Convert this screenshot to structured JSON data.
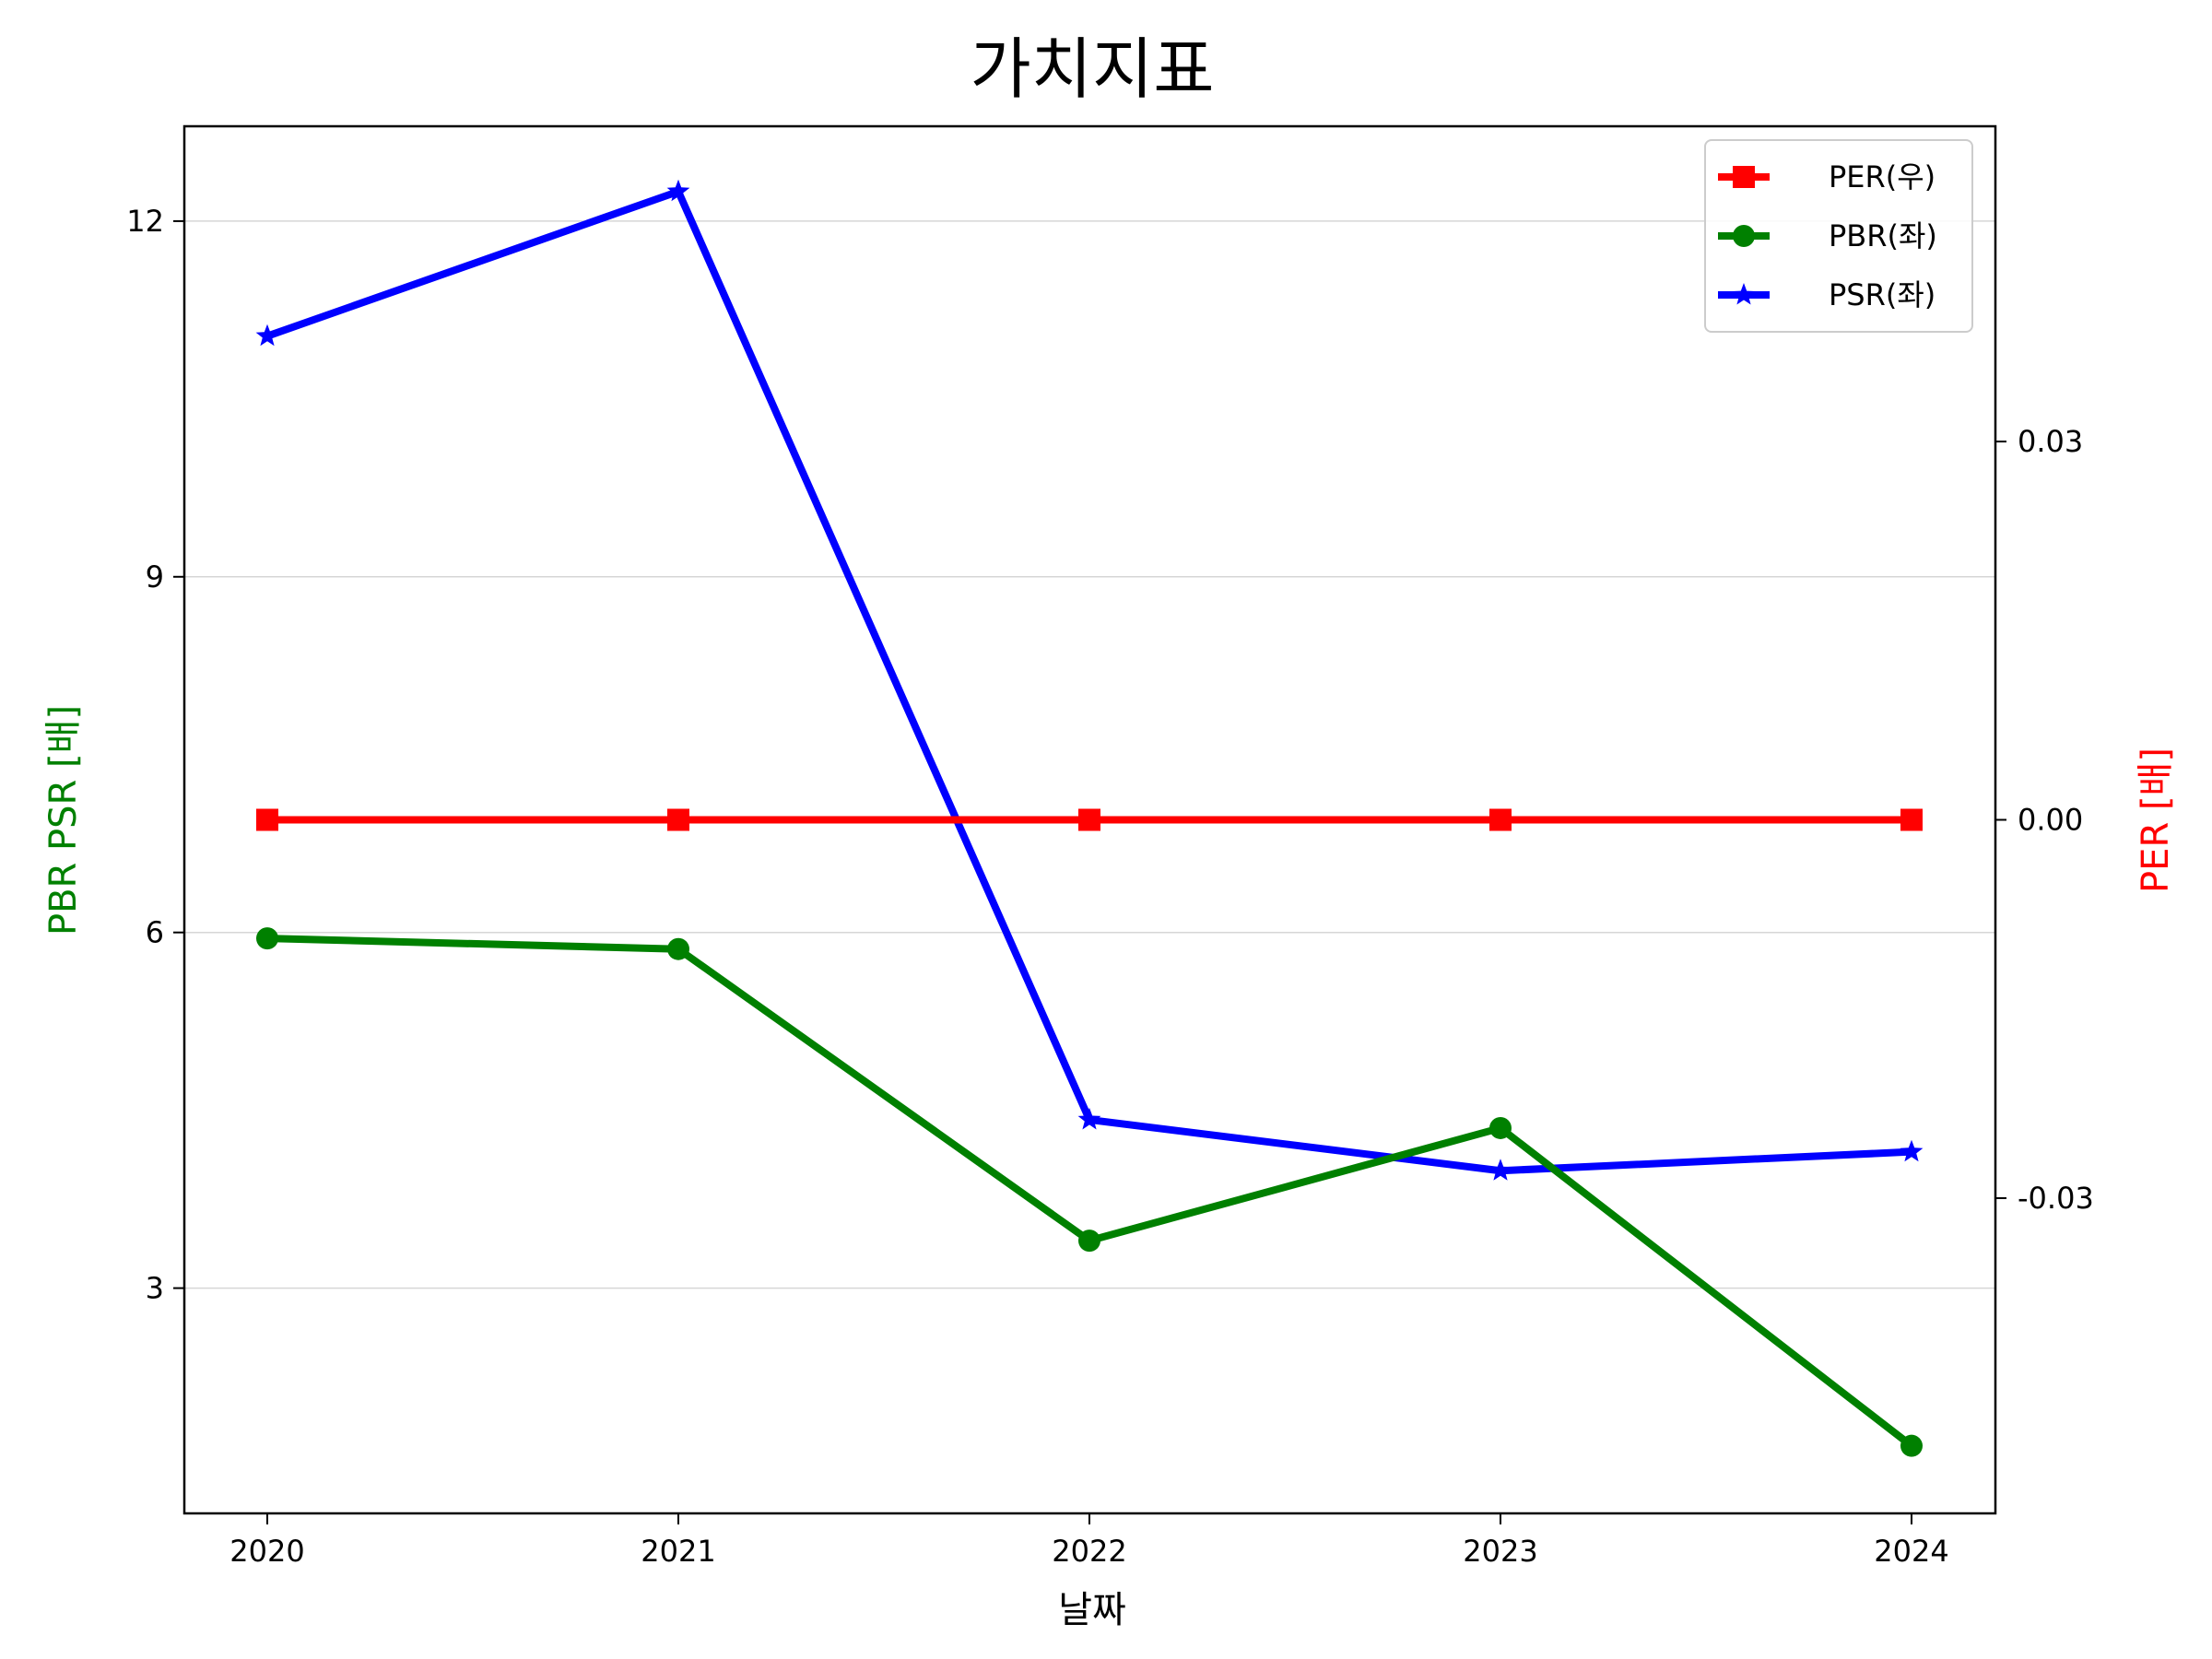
{
  "chart_data": {
    "type": "line",
    "title": "가치지표",
    "xlabel": "날짜",
    "ylabel_left": "PBR PSR [배]",
    "ylabel_right": "PER [배]",
    "ylabel_left_color": "#008000",
    "ylabel_right_color": "#ff0000",
    "categories": [
      "2020",
      "2021",
      "2022",
      "2023",
      "2024"
    ],
    "y_left": {
      "ticks": [
        3,
        6,
        9,
        12
      ],
      "tick_labels": [
        "3",
        "6",
        "9",
        "12"
      ],
      "range": [
        1.1,
        12.8
      ]
    },
    "y_right": {
      "ticks": [
        -0.03,
        0,
        0.03
      ],
      "tick_labels": [
        "-0.03",
        "0.00",
        "0.03"
      ],
      "range": [
        -0.055,
        0.055
      ]
    },
    "grid": "horizontal",
    "legend_position": "top-right",
    "series": [
      {
        "name": "PER(우)",
        "axis": "right",
        "color": "#ff0000",
        "marker": "square",
        "values": [
          0,
          0,
          0,
          0,
          0
        ]
      },
      {
        "name": "PBR(좌)",
        "axis": "left",
        "color": "#008000",
        "marker": "circle",
        "values": [
          5.95,
          5.86,
          3.4,
          4.35,
          1.67
        ]
      },
      {
        "name": "PSR(좌)",
        "axis": "left",
        "color": "#0000ff",
        "marker": "star",
        "values": [
          11.03,
          12.25,
          4.42,
          3.99,
          4.15
        ]
      }
    ]
  }
}
